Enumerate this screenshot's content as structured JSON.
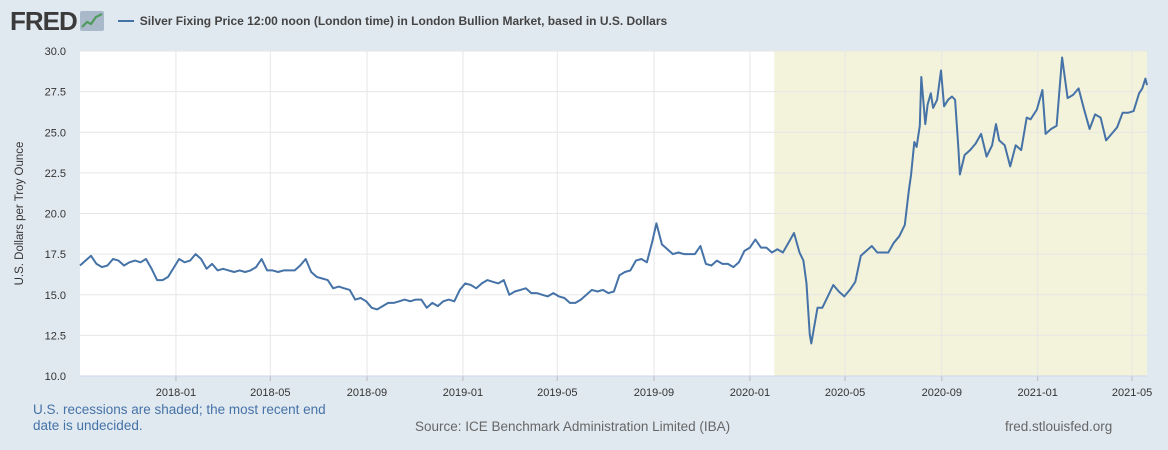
{
  "header": {
    "logo_text": "FRED",
    "series_title": "Silver Fixing Price 12:00 noon (London time) in London Bullion Market, based in U.S. Dollars",
    "series_color": "#4572a7"
  },
  "footer": {
    "recession_note": "U.S. recessions are shaded; the most recent end date is undecided.",
    "source": "Source: ICE Benchmark Administration Limited (IBA)",
    "site": "fred.stlouisfed.org"
  },
  "chart_data": {
    "type": "line",
    "title": "Silver Fixing Price 12:00 noon (London time) in London Bullion Market, based in U.S. Dollars",
    "xlabel": "",
    "ylabel": "U.S. Dollars per Troy Ounce",
    "xlim": [
      "2017-09-01",
      "2021-05-20"
    ],
    "ylim": [
      10.0,
      30.0
    ],
    "yticks": [
      "10.0",
      "12.5",
      "15.0",
      "17.5",
      "20.0",
      "22.5",
      "25.0",
      "27.5",
      "30.0"
    ],
    "xticks": [
      "2018-01",
      "2018-05",
      "2018-09",
      "2019-01",
      "2019-05",
      "2019-09",
      "2020-01",
      "2020-05",
      "2020-09",
      "2021-01",
      "2021-05"
    ],
    "grid": true,
    "line_color": "#4572a7",
    "recession_color": "#f3f2da",
    "recession": {
      "start": "2020-02-01",
      "end": "2021-05-20",
      "label": "ongoing"
    },
    "series": [
      {
        "name": "Silver Fixing Price",
        "points": [
          [
            "2017-09-01",
            16.8
          ],
          [
            "2017-09-08",
            17.1
          ],
          [
            "2017-09-15",
            17.4
          ],
          [
            "2017-09-22",
            16.9
          ],
          [
            "2017-09-29",
            16.7
          ],
          [
            "2017-10-06",
            16.8
          ],
          [
            "2017-10-13",
            17.2
          ],
          [
            "2017-10-20",
            17.1
          ],
          [
            "2017-10-27",
            16.8
          ],
          [
            "2017-11-03",
            17.0
          ],
          [
            "2017-11-10",
            17.1
          ],
          [
            "2017-11-17",
            17.0
          ],
          [
            "2017-11-24",
            17.2
          ],
          [
            "2017-12-01",
            16.6
          ],
          [
            "2017-12-08",
            15.9
          ],
          [
            "2017-12-15",
            15.9
          ],
          [
            "2017-12-22",
            16.1
          ],
          [
            "2018-01-05",
            17.2
          ],
          [
            "2018-01-12",
            17.0
          ],
          [
            "2018-01-19",
            17.1
          ],
          [
            "2018-01-26",
            17.5
          ],
          [
            "2018-02-02",
            17.2
          ],
          [
            "2018-02-09",
            16.6
          ],
          [
            "2018-02-16",
            16.9
          ],
          [
            "2018-02-23",
            16.5
          ],
          [
            "2018-03-02",
            16.6
          ],
          [
            "2018-03-09",
            16.5
          ],
          [
            "2018-03-16",
            16.4
          ],
          [
            "2018-03-23",
            16.5
          ],
          [
            "2018-03-30",
            16.4
          ],
          [
            "2018-04-06",
            16.5
          ],
          [
            "2018-04-13",
            16.7
          ],
          [
            "2018-04-20",
            17.2
          ],
          [
            "2018-04-27",
            16.5
          ],
          [
            "2018-05-04",
            16.5
          ],
          [
            "2018-05-11",
            16.4
          ],
          [
            "2018-05-18",
            16.5
          ],
          [
            "2018-05-25",
            16.5
          ],
          [
            "2018-06-01",
            16.5
          ],
          [
            "2018-06-08",
            16.8
          ],
          [
            "2018-06-15",
            17.2
          ],
          [
            "2018-06-22",
            16.4
          ],
          [
            "2018-06-29",
            16.1
          ],
          [
            "2018-07-06",
            16.0
          ],
          [
            "2018-07-13",
            15.9
          ],
          [
            "2018-07-20",
            15.4
          ],
          [
            "2018-07-27",
            15.5
          ],
          [
            "2018-08-03",
            15.4
          ],
          [
            "2018-08-10",
            15.3
          ],
          [
            "2018-08-17",
            14.7
          ],
          [
            "2018-08-24",
            14.8
          ],
          [
            "2018-08-31",
            14.6
          ],
          [
            "2018-09-07",
            14.2
          ],
          [
            "2018-09-14",
            14.1
          ],
          [
            "2018-09-21",
            14.3
          ],
          [
            "2018-09-28",
            14.5
          ],
          [
            "2018-10-05",
            14.5
          ],
          [
            "2018-10-12",
            14.6
          ],
          [
            "2018-10-19",
            14.7
          ],
          [
            "2018-10-26",
            14.6
          ],
          [
            "2018-11-02",
            14.7
          ],
          [
            "2018-11-09",
            14.7
          ],
          [
            "2018-11-16",
            14.2
          ],
          [
            "2018-11-23",
            14.5
          ],
          [
            "2018-11-30",
            14.3
          ],
          [
            "2018-12-07",
            14.6
          ],
          [
            "2018-12-14",
            14.7
          ],
          [
            "2018-12-21",
            14.6
          ],
          [
            "2018-12-28",
            15.3
          ],
          [
            "2019-01-04",
            15.7
          ],
          [
            "2019-01-11",
            15.6
          ],
          [
            "2019-01-18",
            15.4
          ],
          [
            "2019-01-25",
            15.7
          ],
          [
            "2019-02-01",
            15.9
          ],
          [
            "2019-02-08",
            15.8
          ],
          [
            "2019-02-15",
            15.7
          ],
          [
            "2019-02-22",
            15.9
          ],
          [
            "2019-03-01",
            15.0
          ],
          [
            "2019-03-08",
            15.2
          ],
          [
            "2019-03-15",
            15.3
          ],
          [
            "2019-03-22",
            15.4
          ],
          [
            "2019-03-29",
            15.1
          ],
          [
            "2019-04-05",
            15.1
          ],
          [
            "2019-04-12",
            15.0
          ],
          [
            "2019-04-19",
            14.9
          ],
          [
            "2019-04-26",
            15.1
          ],
          [
            "2019-05-03",
            14.9
          ],
          [
            "2019-05-10",
            14.8
          ],
          [
            "2019-05-17",
            14.5
          ],
          [
            "2019-05-24",
            14.5
          ],
          [
            "2019-05-31",
            14.7
          ],
          [
            "2019-06-07",
            15.0
          ],
          [
            "2019-06-14",
            15.3
          ],
          [
            "2019-06-21",
            15.2
          ],
          [
            "2019-06-28",
            15.3
          ],
          [
            "2019-07-05",
            15.1
          ],
          [
            "2019-07-12",
            15.2
          ],
          [
            "2019-07-19",
            16.2
          ],
          [
            "2019-07-26",
            16.4
          ],
          [
            "2019-08-02",
            16.5
          ],
          [
            "2019-08-09",
            17.1
          ],
          [
            "2019-08-16",
            17.2
          ],
          [
            "2019-08-23",
            17.0
          ],
          [
            "2019-08-30",
            18.3
          ],
          [
            "2019-09-04",
            19.4
          ],
          [
            "2019-09-11",
            18.1
          ],
          [
            "2019-09-18",
            17.8
          ],
          [
            "2019-09-25",
            17.5
          ],
          [
            "2019-10-02",
            17.6
          ],
          [
            "2019-10-09",
            17.5
          ],
          [
            "2019-10-16",
            17.5
          ],
          [
            "2019-10-23",
            17.5
          ],
          [
            "2019-10-30",
            18.0
          ],
          [
            "2019-11-06",
            16.9
          ],
          [
            "2019-11-13",
            16.8
          ],
          [
            "2019-11-20",
            17.1
          ],
          [
            "2019-11-27",
            16.9
          ],
          [
            "2019-12-04",
            16.9
          ],
          [
            "2019-12-11",
            16.7
          ],
          [
            "2019-12-18",
            17.0
          ],
          [
            "2019-12-25",
            17.7
          ],
          [
            "2020-01-01",
            17.9
          ],
          [
            "2020-01-08",
            18.4
          ],
          [
            "2020-01-15",
            17.9
          ],
          [
            "2020-01-22",
            17.9
          ],
          [
            "2020-01-29",
            17.6
          ],
          [
            "2020-02-05",
            17.8
          ],
          [
            "2020-02-12",
            17.6
          ],
          [
            "2020-02-19",
            18.2
          ],
          [
            "2020-02-26",
            18.8
          ],
          [
            "2020-03-04",
            17.6
          ],
          [
            "2020-03-09",
            17.1
          ],
          [
            "2020-03-13",
            15.7
          ],
          [
            "2020-03-17",
            12.6
          ],
          [
            "2020-03-19",
            12.0
          ],
          [
            "2020-03-23",
            13.1
          ],
          [
            "2020-03-27",
            14.2
          ],
          [
            "2020-04-02",
            14.2
          ],
          [
            "2020-04-09",
            14.9
          ],
          [
            "2020-04-16",
            15.6
          ],
          [
            "2020-04-23",
            15.2
          ],
          [
            "2020-04-30",
            14.9
          ],
          [
            "2020-05-07",
            15.3
          ],
          [
            "2020-05-14",
            15.8
          ],
          [
            "2020-05-21",
            17.4
          ],
          [
            "2020-05-28",
            17.7
          ],
          [
            "2020-06-04",
            18.0
          ],
          [
            "2020-06-11",
            17.6
          ],
          [
            "2020-06-18",
            17.6
          ],
          [
            "2020-06-25",
            17.6
          ],
          [
            "2020-07-02",
            18.2
          ],
          [
            "2020-07-09",
            18.6
          ],
          [
            "2020-07-16",
            19.3
          ],
          [
            "2020-07-21",
            21.4
          ],
          [
            "2020-07-24",
            22.4
          ],
          [
            "2020-07-28",
            24.4
          ],
          [
            "2020-07-31",
            24.1
          ],
          [
            "2020-08-04",
            25.4
          ],
          [
            "2020-08-06",
            28.4
          ],
          [
            "2020-08-11",
            25.5
          ],
          [
            "2020-08-14",
            26.7
          ],
          [
            "2020-08-18",
            27.4
          ],
          [
            "2020-08-21",
            26.5
          ],
          [
            "2020-08-26",
            27.0
          ],
          [
            "2020-08-31",
            28.8
          ],
          [
            "2020-09-04",
            26.6
          ],
          [
            "2020-09-09",
            27.0
          ],
          [
            "2020-09-14",
            27.2
          ],
          [
            "2020-09-18",
            27.0
          ],
          [
            "2020-09-22",
            24.1
          ],
          [
            "2020-09-24",
            22.4
          ],
          [
            "2020-09-30",
            23.6
          ],
          [
            "2020-10-07",
            23.9
          ],
          [
            "2020-10-14",
            24.3
          ],
          [
            "2020-10-21",
            24.9
          ],
          [
            "2020-10-28",
            23.5
          ],
          [
            "2020-11-04",
            24.2
          ],
          [
            "2020-11-09",
            25.5
          ],
          [
            "2020-11-13",
            24.5
          ],
          [
            "2020-11-20",
            24.2
          ],
          [
            "2020-11-27",
            22.9
          ],
          [
            "2020-12-04",
            24.2
          ],
          [
            "2020-12-11",
            23.9
          ],
          [
            "2020-12-18",
            25.9
          ],
          [
            "2020-12-23",
            25.8
          ],
          [
            "2020-12-31",
            26.4
          ],
          [
            "2021-01-07",
            27.6
          ],
          [
            "2021-01-11",
            24.9
          ],
          [
            "2021-01-18",
            25.2
          ],
          [
            "2021-01-25",
            25.4
          ],
          [
            "2021-02-01",
            29.6
          ],
          [
            "2021-02-08",
            27.1
          ],
          [
            "2021-02-15",
            27.3
          ],
          [
            "2021-02-22",
            27.7
          ],
          [
            "2021-03-01",
            26.4
          ],
          [
            "2021-03-08",
            25.2
          ],
          [
            "2021-03-15",
            26.1
          ],
          [
            "2021-03-22",
            25.9
          ],
          [
            "2021-03-29",
            24.5
          ],
          [
            "2021-04-05",
            24.9
          ],
          [
            "2021-04-12",
            25.3
          ],
          [
            "2021-04-19",
            26.2
          ],
          [
            "2021-04-26",
            26.2
          ],
          [
            "2021-05-03",
            26.3
          ],
          [
            "2021-05-10",
            27.4
          ],
          [
            "2021-05-14",
            27.7
          ],
          [
            "2021-05-18",
            28.3
          ],
          [
            "2021-05-20",
            27.9
          ]
        ]
      }
    ]
  }
}
